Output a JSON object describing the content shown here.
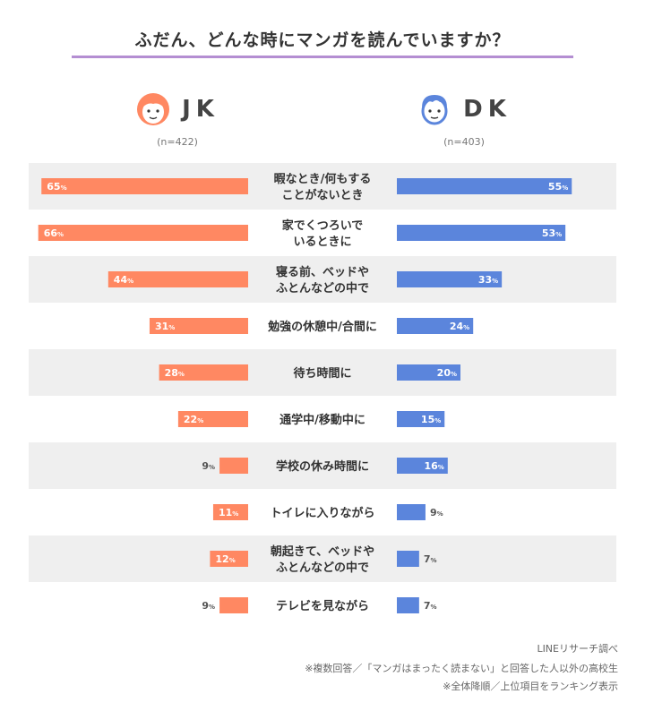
{
  "title": "ふだん、どんな時にマンガを読んでいますか？",
  "left_header": {
    "label": "JK",
    "n": "(n=422)"
  },
  "right_header": {
    "label": "DK",
    "n": "(n=403)"
  },
  "footer": {
    "source": "LINEリサーチ調べ",
    "note1": "※複数回答／「マンガはまったく読まない」と回答した人以外の高校生",
    "note2": "※全体降順／上位項目をランキング表示"
  },
  "colors": {
    "jk": "#ff8862",
    "dk": "#5b85dc",
    "band": "#efefef",
    "accent": "#b48ed2"
  },
  "chart_data": {
    "type": "bar",
    "title": "ふだん、どんな時にマンガを読んでいますか？",
    "orientation": "horizontal-diverging",
    "unit": "%",
    "categories": [
      [
        "暇なとき/何もする",
        "ことがないとき"
      ],
      [
        "家でくつろいで",
        "いるときに"
      ],
      [
        "寝る前、ベッドや",
        "ふとんなどの中で"
      ],
      [
        "勉強の休憩中/合間に"
      ],
      [
        "待ち時間に"
      ],
      [
        "通学中/移動中に"
      ],
      [
        "学校の休み時間に"
      ],
      [
        "トイレに入りながら"
      ],
      [
        "朝起きて、ベッドや",
        "ふとんなどの中で"
      ],
      [
        "テレビを見ながら"
      ]
    ],
    "series": [
      {
        "name": "JK",
        "values": [
          65,
          66,
          44,
          31,
          28,
          22,
          9,
          11,
          12,
          9
        ]
      },
      {
        "name": "DK",
        "values": [
          55,
          53,
          33,
          24,
          20,
          15,
          16,
          9,
          7,
          7
        ]
      }
    ],
    "xlim": [
      0,
      100
    ]
  }
}
